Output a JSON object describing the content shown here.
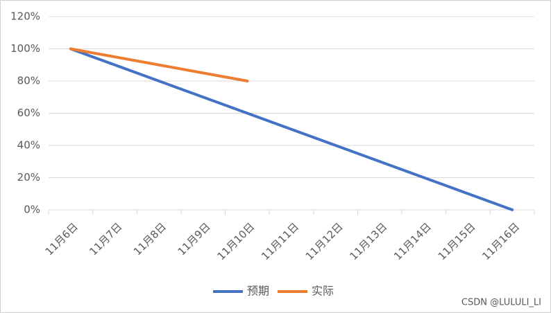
{
  "chart_data": {
    "type": "line",
    "categories": [
      "11月6日",
      "11月7日",
      "11月8日",
      "11月9日",
      "11月10日",
      "11月11日",
      "11月12日",
      "11月13日",
      "11月14日",
      "11月15日",
      "11月16日"
    ],
    "series": [
      {
        "name": "预期",
        "color": "#4472c4",
        "values": [
          100,
          90,
          80,
          70,
          60,
          50,
          40,
          30,
          20,
          10,
          0
        ]
      },
      {
        "name": "实际",
        "color": "#ed7d31",
        "values": [
          100,
          95,
          90,
          85,
          80,
          null,
          null,
          null,
          null,
          null,
          null
        ]
      }
    ],
    "ylim": [
      0,
      120
    ],
    "yticks": [
      {
        "value": 0,
        "label": "0%"
      },
      {
        "value": 20,
        "label": "20%"
      },
      {
        "value": 40,
        "label": "40%"
      },
      {
        "value": 60,
        "label": "60%"
      },
      {
        "value": 80,
        "label": "80%"
      },
      {
        "value": 100,
        "label": "100%"
      },
      {
        "value": 120,
        "label": "120%"
      }
    ],
    "grid": true,
    "legend": "bottom",
    "watermark": "CSDN @LULULI_LI"
  }
}
